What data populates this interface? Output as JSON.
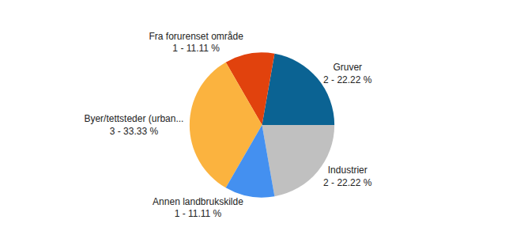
{
  "chart_data": {
    "type": "pie",
    "categories": [
      "Industrier",
      "Gruver",
      "Fra forurenset område",
      "Byer/tettsteder (urban...",
      "Annen landbrukskilde"
    ],
    "values": [
      2,
      2,
      1,
      3,
      1
    ],
    "percentages": [
      22.22,
      22.22,
      11.11,
      33.33,
      11.11
    ],
    "value_labels": [
      "2 - 22.22 %",
      "2 - 22.22 %",
      "1 - 11.11 %",
      "3 - 33.33 %",
      "1 - 11.11 %"
    ],
    "data_labels": true,
    "colors": [
      "#c0c0c0",
      "#0b6393",
      "#e1420d",
      "#fbb33f",
      "#4490f0"
    ]
  }
}
